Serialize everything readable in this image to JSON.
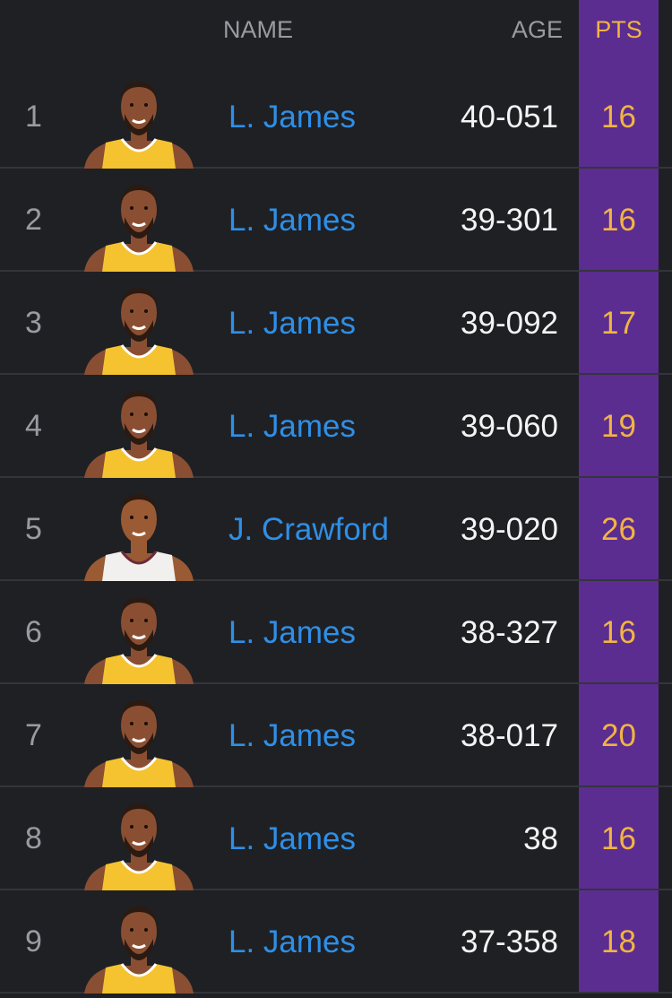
{
  "header": {
    "name": "NAME",
    "age": "AGE",
    "pts": "PTS"
  },
  "colors": {
    "background": "#1f2024",
    "highlight_column": "#5b2d90",
    "pts_text": "#f2b443",
    "name_link": "#2f8fe6",
    "lakers_jersey": "#f5c330",
    "crawford_jersey": "#f2f0ee"
  },
  "rows": [
    {
      "rank": "1",
      "name": "L. James",
      "age": "40-051",
      "pts": "16",
      "avatar": "lakers"
    },
    {
      "rank": "2",
      "name": "L. James",
      "age": "39-301",
      "pts": "16",
      "avatar": "lakers"
    },
    {
      "rank": "3",
      "name": "L. James",
      "age": "39-092",
      "pts": "17",
      "avatar": "lakers"
    },
    {
      "rank": "4",
      "name": "L. James",
      "age": "39-060",
      "pts": "19",
      "avatar": "lakers"
    },
    {
      "rank": "5",
      "name": "J. Crawford",
      "age": "39-020",
      "pts": "26",
      "avatar": "crawford"
    },
    {
      "rank": "6",
      "name": "L. James",
      "age": "38-327",
      "pts": "16",
      "avatar": "lakers"
    },
    {
      "rank": "7",
      "name": "L. James",
      "age": "38-017",
      "pts": "20",
      "avatar": "lakers"
    },
    {
      "rank": "8",
      "name": "L. James",
      "age": "38",
      "pts": "16",
      "avatar": "lakers"
    },
    {
      "rank": "9",
      "name": "L. James",
      "age": "37-358",
      "pts": "18",
      "avatar": "lakers"
    }
  ]
}
